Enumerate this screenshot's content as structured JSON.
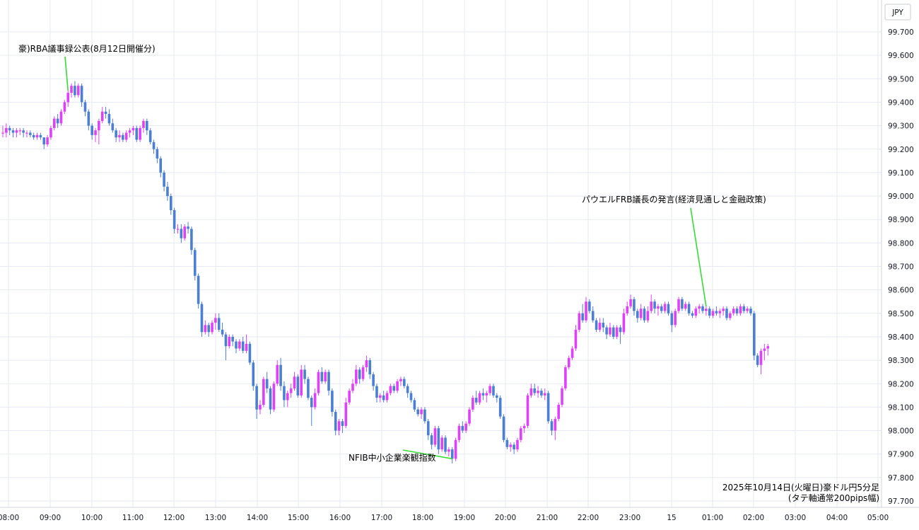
{
  "chart_data": {
    "type": "candlestick",
    "currency_label": "JPY",
    "info_line1": "2025年10月14日(火曜日)豪ドル円5分足",
    "info_line2": "(タテ軸通常200pips幅)",
    "ylim": [
      97.7,
      99.74
    ],
    "y_ticks": [
      "99.700",
      "99.600",
      "99.500",
      "99.400",
      "99.300",
      "99.200",
      "99.100",
      "99.000",
      "98.900",
      "98.800",
      "98.700",
      "98.600",
      "98.500",
      "98.400",
      "98.300",
      "98.200",
      "98.100",
      "98.000",
      "97.900",
      "97.800",
      "97.700"
    ],
    "x_tick_labels": [
      "08:00",
      "09:00",
      "10:00",
      "11:00",
      "12:00",
      "13:00",
      "14:00",
      "15:00",
      "16:00",
      "17:00",
      "18:00",
      "19:00",
      "20:00",
      "21:00",
      "22:00",
      "23:00",
      "15",
      "01:00",
      "02:00",
      "03:00",
      "04:00",
      "05:00"
    ],
    "colors": {
      "up": "#e040fb",
      "down": "#4a7fd4",
      "annotation_line": "#33dd33",
      "grid": "#e6eaf0"
    },
    "annotations": [
      {
        "text": "豪)RBA議事録公表(8月12日開催分)",
        "candle_index": 19
      },
      {
        "text": "NFIB中小企業楽観指数",
        "candle_index": 131
      },
      {
        "text": "パウエルFRB議長の発言(経済見通しと金融政策)",
        "candle_index": 205
      }
    ],
    "ohlc": [
      [
        99.27,
        99.3,
        99.25,
        99.27
      ],
      [
        99.27,
        99.31,
        99.25,
        99.29
      ],
      [
        99.29,
        99.3,
        99.26,
        99.28
      ],
      [
        99.28,
        99.29,
        99.25,
        99.27
      ],
      [
        99.27,
        99.29,
        99.25,
        99.28
      ],
      [
        99.28,
        99.29,
        99.26,
        99.28
      ],
      [
        99.28,
        99.29,
        99.25,
        99.27
      ],
      [
        99.27,
        99.28,
        99.25,
        99.27
      ],
      [
        99.27,
        99.28,
        99.25,
        99.26
      ],
      [
        99.26,
        99.27,
        99.24,
        99.25
      ],
      [
        99.25,
        99.27,
        99.24,
        99.26
      ],
      [
        99.26,
        99.27,
        99.24,
        99.25
      ],
      [
        99.25,
        99.25,
        99.2,
        99.22
      ],
      [
        99.22,
        99.26,
        99.21,
        99.25
      ],
      [
        99.25,
        99.3,
        99.24,
        99.29
      ],
      [
        99.29,
        99.34,
        99.28,
        99.33
      ],
      [
        99.33,
        99.35,
        99.29,
        99.31
      ],
      [
        99.31,
        99.37,
        99.3,
        99.36
      ],
      [
        99.36,
        99.41,
        99.35,
        99.4
      ],
      [
        99.4,
        99.45,
        99.38,
        99.44
      ],
      [
        99.44,
        99.48,
        99.42,
        99.47
      ],
      [
        99.47,
        99.49,
        99.42,
        99.43
      ],
      [
        99.43,
        99.48,
        99.42,
        99.47
      ],
      [
        99.47,
        99.48,
        99.38,
        99.4
      ],
      [
        99.4,
        99.41,
        99.34,
        99.36
      ],
      [
        99.36,
        99.37,
        99.28,
        99.3
      ],
      [
        99.3,
        99.31,
        99.24,
        99.26
      ],
      [
        99.26,
        99.29,
        99.23,
        99.28
      ],
      [
        99.28,
        99.33,
        99.22,
        99.32
      ],
      [
        99.32,
        99.38,
        99.31,
        99.36
      ],
      [
        99.36,
        99.38,
        99.33,
        99.35
      ],
      [
        99.35,
        99.37,
        99.3,
        99.31
      ],
      [
        99.31,
        99.33,
        99.27,
        99.28
      ],
      [
        99.28,
        99.29,
        99.23,
        99.25
      ],
      [
        99.25,
        99.28,
        99.23,
        99.26
      ],
      [
        99.26,
        99.27,
        99.23,
        99.24
      ],
      [
        99.24,
        99.28,
        99.23,
        99.27
      ],
      [
        99.27,
        99.29,
        99.25,
        99.28
      ],
      [
        99.28,
        99.3,
        99.26,
        99.29
      ],
      [
        99.29,
        99.3,
        99.23,
        99.24
      ],
      [
        99.24,
        99.3,
        99.23,
        99.29
      ],
      [
        99.29,
        99.33,
        99.27,
        99.32
      ],
      [
        99.32,
        99.33,
        99.26,
        99.28
      ],
      [
        99.28,
        99.29,
        99.22,
        99.23
      ],
      [
        99.23,
        99.24,
        99.18,
        99.2
      ],
      [
        99.2,
        99.21,
        99.14,
        99.16
      ],
      [
        99.16,
        99.17,
        99.08,
        99.1
      ],
      [
        99.1,
        99.11,
        99.02,
        99.04
      ],
      [
        99.04,
        99.06,
        98.98,
        99
      ],
      [
        99,
        99.01,
        98.92,
        98.94
      ],
      [
        98.94,
        98.95,
        98.84,
        98.86
      ],
      [
        98.86,
        98.88,
        98.84,
        98.86
      ],
      [
        98.86,
        98.88,
        98.8,
        98.82
      ],
      [
        98.82,
        98.88,
        98.81,
        98.87
      ],
      [
        98.87,
        98.89,
        98.84,
        98.86
      ],
      [
        98.86,
        98.87,
        98.75,
        98.77
      ],
      [
        98.77,
        98.78,
        98.64,
        98.66
      ],
      [
        98.66,
        98.67,
        98.52,
        98.54
      ],
      [
        98.54,
        98.55,
        98.4,
        98.42
      ],
      [
        98.42,
        98.47,
        98.41,
        98.45
      ],
      [
        98.45,
        98.46,
        98.4,
        98.42
      ],
      [
        98.42,
        98.47,
        98.41,
        98.46
      ],
      [
        98.46,
        98.5,
        98.43,
        98.48
      ],
      [
        98.48,
        98.5,
        98.42,
        98.43
      ],
      [
        98.43,
        98.46,
        98.4,
        98.41
      ],
      [
        98.41,
        98.42,
        98.3,
        98.36
      ],
      [
        98.36,
        98.41,
        98.35,
        98.4
      ],
      [
        98.4,
        98.41,
        98.36,
        98.38
      ],
      [
        98.38,
        98.39,
        98.33,
        98.35
      ],
      [
        98.35,
        98.39,
        98.34,
        98.38
      ],
      [
        98.38,
        98.4,
        98.33,
        98.34
      ],
      [
        98.34,
        98.41,
        98.33,
        98.37
      ],
      [
        98.37,
        98.38,
        98.28,
        98.29
      ],
      [
        98.29,
        98.3,
        98.17,
        98.19
      ],
      [
        98.19,
        98.2,
        98.05,
        98.09
      ],
      [
        98.09,
        98.13,
        98.07,
        98.11
      ],
      [
        98.11,
        98.23,
        98.1,
        98.22
      ],
      [
        98.22,
        98.25,
        98.16,
        98.18
      ],
      [
        98.18,
        98.19,
        98.07,
        98.09
      ],
      [
        98.09,
        98.21,
        98.08,
        98.2
      ],
      [
        98.2,
        98.3,
        98.19,
        98.28
      ],
      [
        98.28,
        98.31,
        98.17,
        98.19
      ],
      [
        98.19,
        98.21,
        98.1,
        98.13
      ],
      [
        98.13,
        98.17,
        98.1,
        98.16
      ],
      [
        98.16,
        98.2,
        98.14,
        98.18
      ],
      [
        98.18,
        98.25,
        98.17,
        98.23
      ],
      [
        98.23,
        98.24,
        98.14,
        98.15
      ],
      [
        98.15,
        98.28,
        98.14,
        98.26
      ],
      [
        98.26,
        98.28,
        98.2,
        98.22
      ],
      [
        98.22,
        98.23,
        98.13,
        98.14
      ],
      [
        98.14,
        98.15,
        98.02,
        98.1
      ],
      [
        98.1,
        98.18,
        98.09,
        98.16
      ],
      [
        98.16,
        98.26,
        98.15,
        98.25
      ],
      [
        98.25,
        98.27,
        98.2,
        98.21
      ],
      [
        98.21,
        98.26,
        98.2,
        98.25
      ],
      [
        98.25,
        98.26,
        98.15,
        98.17
      ],
      [
        98.17,
        98.18,
        98.06,
        98.08
      ],
      [
        98.08,
        98.09,
        97.98,
        98
      ],
      [
        98,
        98.05,
        97.98,
        98.04
      ],
      [
        98.04,
        98.05,
        97.99,
        98.02
      ],
      [
        98.02,
        98.14,
        98.01,
        98.12
      ],
      [
        98.12,
        98.18,
        98.11,
        98.17
      ],
      [
        98.17,
        98.22,
        98.16,
        98.2
      ],
      [
        98.2,
        98.28,
        98.19,
        98.26
      ],
      [
        98.26,
        98.27,
        98.2,
        98.22
      ],
      [
        98.22,
        98.28,
        98.21,
        98.27
      ],
      [
        98.27,
        98.32,
        98.25,
        98.3
      ],
      [
        98.3,
        98.31,
        98.22,
        98.24
      ],
      [
        98.24,
        98.25,
        98.17,
        98.19
      ],
      [
        98.19,
        98.2,
        98.12,
        98.14
      ],
      [
        98.14,
        98.16,
        98.12,
        98.15
      ],
      [
        98.15,
        98.17,
        98.12,
        98.13
      ],
      [
        98.13,
        98.17,
        98.12,
        98.16
      ],
      [
        98.16,
        98.2,
        98.15,
        98.19
      ],
      [
        98.19,
        98.2,
        98.16,
        98.17
      ],
      [
        98.17,
        98.22,
        98.16,
        98.21
      ],
      [
        98.21,
        98.23,
        98.19,
        98.22
      ],
      [
        98.22,
        98.23,
        98.18,
        98.19
      ],
      [
        98.19,
        98.2,
        98.14,
        98.16
      ],
      [
        98.16,
        98.17,
        98.12,
        98.13
      ],
      [
        98.13,
        98.14,
        98.08,
        98.09
      ],
      [
        98.09,
        98.1,
        98.06,
        98.07
      ],
      [
        98.07,
        98.1,
        98.05,
        98.09
      ],
      [
        98.09,
        98.1,
        98.03,
        98.04
      ],
      [
        98.04,
        98.05,
        97.96,
        97.98
      ],
      [
        97.98,
        97.99,
        97.92,
        97.94
      ],
      [
        97.94,
        98.02,
        97.93,
        98.01
      ],
      [
        98.01,
        98.02,
        97.9,
        97.92
      ],
      [
        97.92,
        97.98,
        97.91,
        97.97
      ],
      [
        97.97,
        97.98,
        97.9,
        97.91
      ],
      [
        97.91,
        97.93,
        97.89,
        97.92
      ],
      [
        97.92,
        97.93,
        97.86,
        97.88
      ],
      [
        97.88,
        97.97,
        97.87,
        97.96
      ],
      [
        97.96,
        98.03,
        97.95,
        98.02
      ],
      [
        98.02,
        98.04,
        97.99,
        98
      ],
      [
        98,
        98.04,
        97.99,
        98.03
      ],
      [
        98.03,
        98.1,
        98.02,
        98.09
      ],
      [
        98.09,
        98.15,
        98.08,
        98.14
      ],
      [
        98.14,
        98.17,
        98.11,
        98.12
      ],
      [
        98.12,
        98.17,
        98.11,
        98.16
      ],
      [
        98.16,
        98.18,
        98.13,
        98.15
      ],
      [
        98.15,
        98.17,
        98.12,
        98.16
      ],
      [
        98.16,
        98.2,
        98.15,
        98.19
      ],
      [
        98.19,
        98.2,
        98.14,
        98.15
      ],
      [
        98.15,
        98.16,
        98.12,
        98.14
      ],
      [
        98.14,
        98.15,
        98.05,
        98.06
      ],
      [
        98.06,
        98.07,
        97.95,
        97.96
      ],
      [
        97.96,
        97.97,
        97.92,
        97.93
      ],
      [
        97.93,
        97.95,
        97.91,
        97.94
      ],
      [
        97.94,
        97.95,
        97.9,
        97.92
      ],
      [
        97.92,
        97.97,
        97.91,
        97.96
      ],
      [
        97.96,
        98.02,
        97.95,
        98.01
      ],
      [
        98.01,
        98.03,
        97.99,
        98.02
      ],
      [
        98.02,
        98.16,
        98.01,
        98.15
      ],
      [
        98.15,
        98.2,
        98.14,
        98.18
      ],
      [
        98.18,
        98.2,
        98.15,
        98.16
      ],
      [
        98.16,
        98.19,
        98.14,
        98.17
      ],
      [
        98.17,
        98.18,
        98.14,
        98.15
      ],
      [
        98.15,
        98.18,
        98.13,
        98.16
      ],
      [
        98.16,
        98.17,
        98.03,
        98.04
      ],
      [
        98.04,
        98.05,
        97.98,
        98
      ],
      [
        98,
        98.06,
        97.96,
        98.05
      ],
      [
        98.05,
        98.12,
        98.04,
        98.11
      ],
      [
        98.11,
        98.19,
        98.1,
        98.18
      ],
      [
        98.18,
        98.28,
        98.17,
        98.27
      ],
      [
        98.27,
        98.32,
        98.26,
        98.31
      ],
      [
        98.31,
        98.36,
        98.3,
        98.35
      ],
      [
        98.35,
        98.45,
        98.34,
        98.43
      ],
      [
        98.43,
        98.51,
        98.42,
        98.5
      ],
      [
        98.5,
        98.54,
        98.46,
        98.47
      ],
      [
        98.47,
        98.57,
        98.46,
        98.55
      ],
      [
        98.55,
        98.56,
        98.5,
        98.51
      ],
      [
        98.51,
        98.53,
        98.46,
        98.47
      ],
      [
        98.47,
        98.48,
        98.42,
        98.43
      ],
      [
        98.43,
        98.48,
        98.42,
        98.46
      ],
      [
        98.46,
        98.48,
        98.42,
        98.44
      ],
      [
        98.44,
        98.45,
        98.39,
        98.41
      ],
      [
        98.41,
        98.46,
        98.4,
        98.44
      ],
      [
        98.44,
        98.45,
        98.39,
        98.4
      ],
      [
        98.4,
        98.45,
        98.39,
        98.44
      ],
      [
        98.44,
        98.45,
        98.37,
        98.42
      ],
      [
        98.42,
        98.52,
        98.41,
        98.5
      ],
      [
        98.5,
        98.55,
        98.49,
        98.53
      ],
      [
        98.53,
        98.58,
        98.52,
        98.56
      ],
      [
        98.56,
        98.57,
        98.49,
        98.51
      ],
      [
        98.51,
        98.52,
        98.46,
        98.48
      ],
      [
        98.48,
        98.54,
        98.47,
        98.52
      ],
      [
        98.52,
        98.53,
        98.46,
        98.47
      ],
      [
        98.47,
        98.53,
        98.46,
        98.51
      ],
      [
        98.51,
        98.58,
        98.5,
        98.55
      ],
      [
        98.55,
        98.56,
        98.5,
        98.52
      ],
      [
        98.52,
        98.54,
        98.49,
        98.53
      ],
      [
        98.53,
        98.54,
        98.5,
        98.51
      ],
      [
        98.51,
        98.55,
        98.5,
        98.54
      ],
      [
        98.54,
        98.55,
        98.49,
        98.5
      ],
      [
        98.5,
        98.51,
        98.42,
        98.45
      ],
      [
        98.45,
        98.52,
        98.44,
        98.51
      ],
      [
        98.51,
        98.57,
        98.5,
        98.56
      ],
      [
        98.56,
        98.57,
        98.51,
        98.52
      ],
      [
        98.52,
        98.55,
        98.51,
        98.54
      ],
      [
        98.54,
        98.55,
        98.49,
        98.5
      ],
      [
        98.5,
        98.51,
        98.48,
        98.49
      ],
      [
        98.49,
        98.53,
        98.48,
        98.52
      ],
      [
        98.52,
        98.54,
        98.5,
        98.53
      ],
      [
        98.53,
        98.54,
        98.5,
        98.51
      ],
      [
        98.51,
        98.53,
        98.49,
        98.52
      ],
      [
        98.52,
        98.53,
        98.48,
        98.49
      ],
      [
        98.49,
        98.52,
        98.48,
        98.51
      ],
      [
        98.51,
        98.53,
        98.49,
        98.5
      ],
      [
        98.5,
        98.52,
        98.48,
        98.51
      ],
      [
        98.51,
        98.53,
        98.49,
        98.52
      ],
      [
        98.52,
        98.53,
        98.47,
        98.48
      ],
      [
        98.48,
        98.51,
        98.47,
        98.5
      ],
      [
        98.5,
        98.53,
        98.49,
        98.52
      ],
      [
        98.52,
        98.53,
        98.49,
        98.5
      ],
      [
        98.5,
        98.54,
        98.49,
        98.53
      ],
      [
        98.53,
        98.54,
        98.5,
        98.51
      ],
      [
        98.51,
        98.53,
        98.5,
        98.52
      ],
      [
        98.52,
        98.53,
        98.49,
        98.5
      ],
      [
        98.5,
        98.51,
        98.3,
        98.32
      ],
      [
        98.32,
        98.33,
        98.27,
        98.28
      ],
      [
        98.28,
        98.35,
        98.24,
        98.34
      ],
      [
        98.34,
        98.37,
        98.3,
        98.35
      ],
      [
        98.35,
        98.37,
        98.32,
        98.36
      ]
    ]
  }
}
